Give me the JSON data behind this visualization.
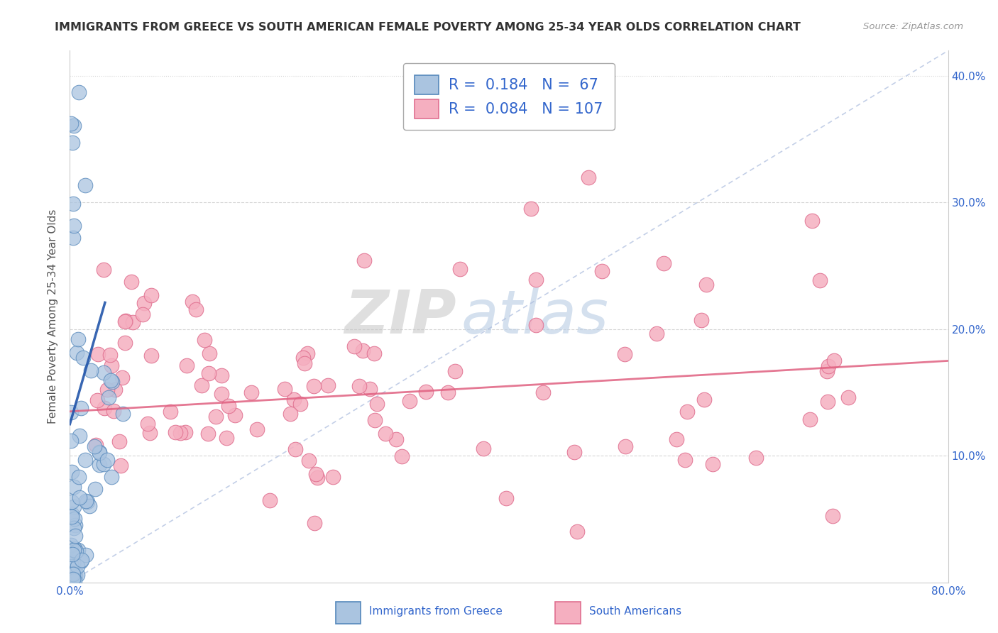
{
  "title": "IMMIGRANTS FROM GREECE VS SOUTH AMERICAN FEMALE POVERTY AMONG 25-34 YEAR OLDS CORRELATION CHART",
  "source": "Source: ZipAtlas.com",
  "ylabel": "Female Poverty Among 25-34 Year Olds",
  "xlim": [
    0.0,
    0.8
  ],
  "ylim": [
    0.0,
    0.42
  ],
  "greece_color": "#aac4e0",
  "greece_edge": "#5588bb",
  "sa_color": "#f5afc0",
  "sa_edge": "#e07090",
  "greece_R": 0.184,
  "greece_N": 67,
  "sa_R": 0.084,
  "sa_N": 107,
  "legend_label_greece": "Immigrants from Greece",
  "legend_label_sa": "South Americans",
  "background_color": "#ffffff",
  "grid_color": "#cccccc",
  "title_color": "#333333",
  "axis_label_color": "#555555",
  "tick_color": "#3366cc",
  "greece_trend_color": "#2255aa",
  "sa_trend_color": "#e0608080",
  "watermark_zip_color": "#c8c8c8",
  "watermark_atlas_color": "#b8cce4"
}
